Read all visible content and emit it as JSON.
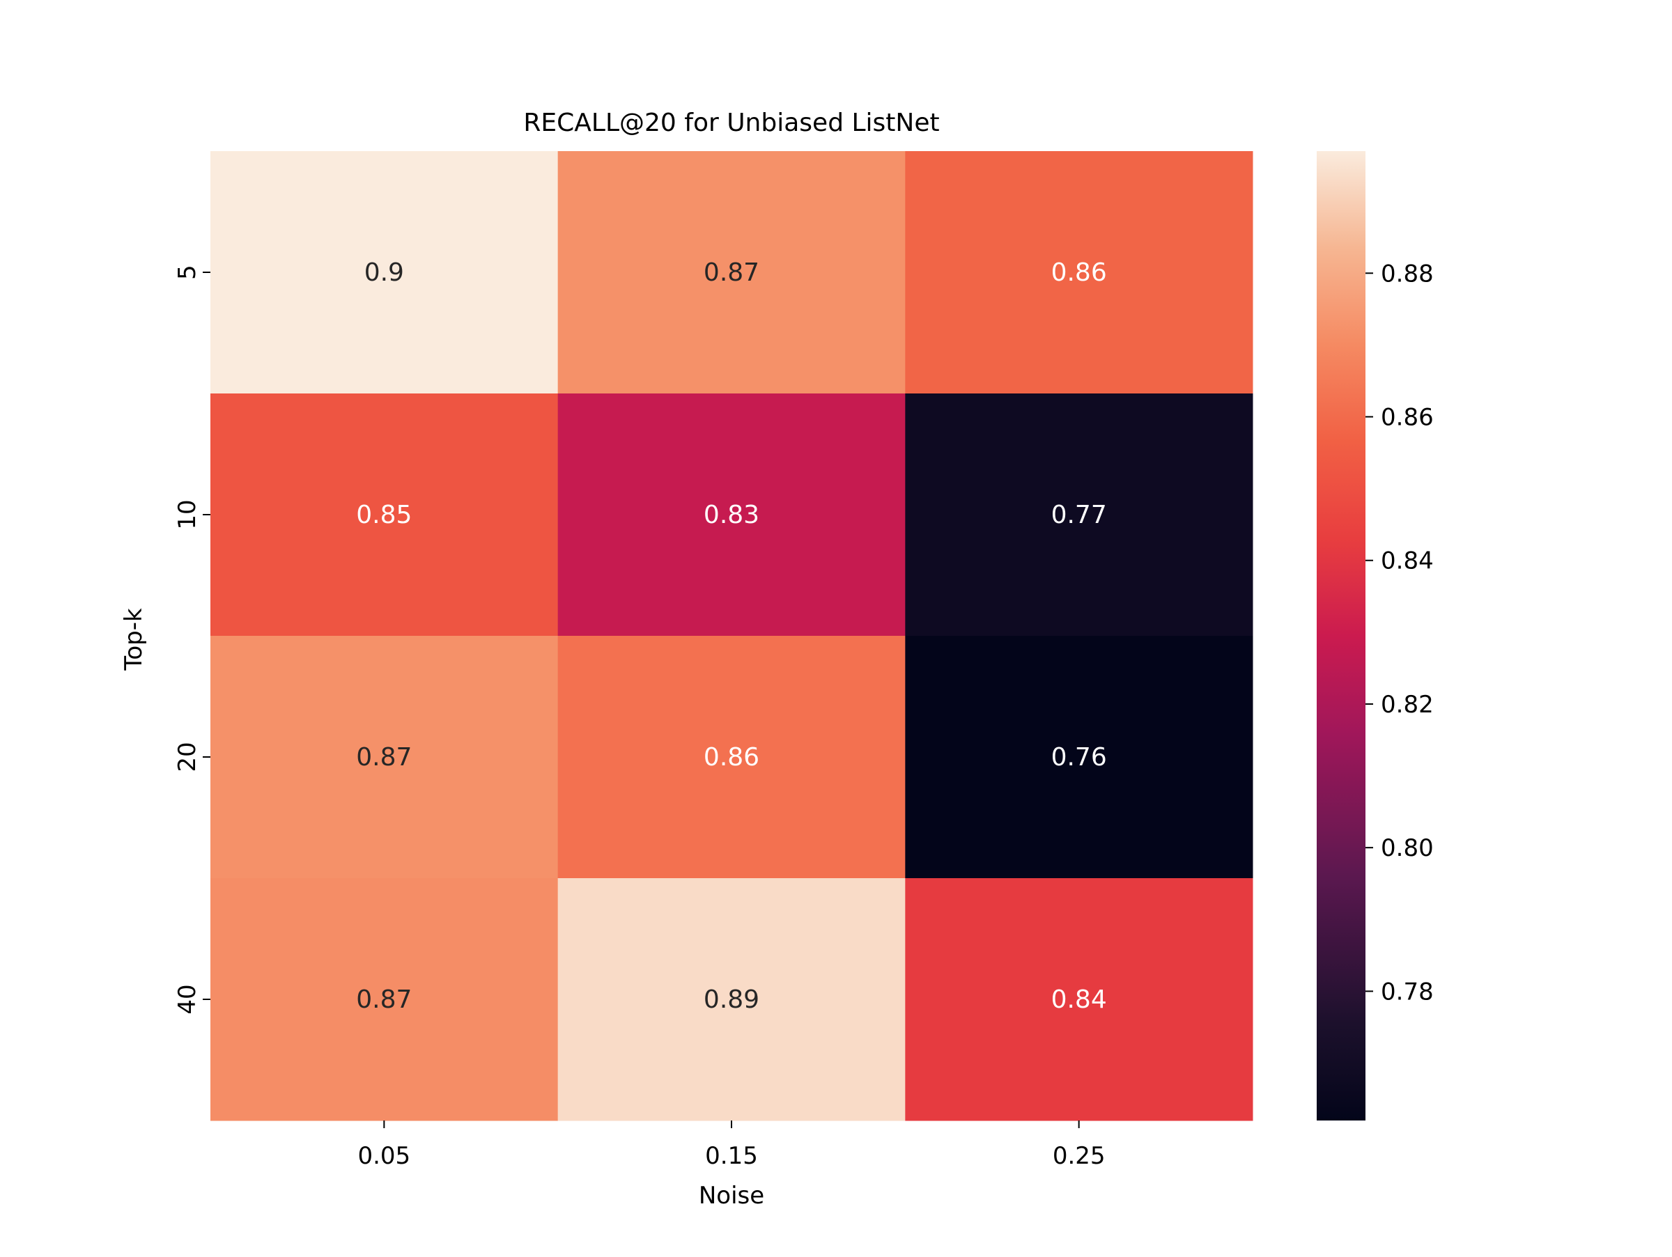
{
  "chart_data": {
    "type": "heatmap",
    "title": "RECALL@20 for Unbiased ListNet",
    "xlabel": "Noise",
    "ylabel": "Top-k",
    "x_categories": [
      "0.05",
      "0.15",
      "0.25"
    ],
    "y_categories": [
      "5",
      "10",
      "20",
      "40"
    ],
    "values": [
      [
        0.897,
        0.872,
        0.858
      ],
      [
        0.852,
        0.828,
        0.768
      ],
      [
        0.872,
        0.862,
        0.762
      ],
      [
        0.871,
        0.893,
        0.842
      ]
    ],
    "annotations": [
      [
        "0.9",
        "0.87",
        "0.86"
      ],
      [
        "0.85",
        "0.83",
        "0.77"
      ],
      [
        "0.87",
        "0.86",
        "0.76"
      ],
      [
        "0.87",
        "0.89",
        "0.84"
      ]
    ],
    "colorbar": {
      "min": 0.762,
      "max": 0.897,
      "ticks": [
        "0.78",
        "0.80",
        "0.82",
        "0.84",
        "0.86",
        "0.88"
      ],
      "colormap": "rocket"
    },
    "grid": false
  }
}
